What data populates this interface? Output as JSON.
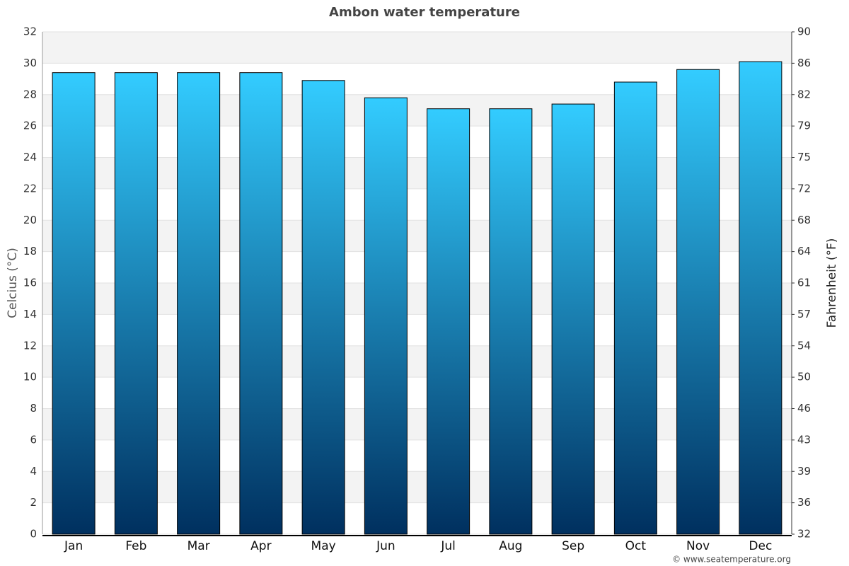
{
  "chart_data": {
    "type": "bar",
    "title": "Ambon water temperature",
    "categories": [
      "Jan",
      "Feb",
      "Mar",
      "Apr",
      "May",
      "Jun",
      "Jul",
      "Aug",
      "Sep",
      "Oct",
      "Nov",
      "Dec"
    ],
    "values": [
      29.4,
      29.4,
      29.4,
      29.4,
      28.9,
      27.8,
      27.1,
      27.1,
      27.4,
      28.8,
      29.6,
      30.1
    ],
    "color": [
      "#33ccff",
      "#00305f"
    ],
    "ylabel": "Celcius (°C)",
    "y2label": "Fahrenheit (°F)",
    "ylim": [
      0,
      32
    ],
    "yticks": [
      0,
      2,
      4,
      6,
      8,
      10,
      12,
      14,
      16,
      18,
      20,
      22,
      24,
      26,
      28,
      30,
      32
    ],
    "y2lim": [
      32,
      89.6
    ],
    "y2ticks": [
      32,
      {
        "value": 35.6,
        "label": "36"
      },
      {
        "value": 39.2,
        "label": "39"
      },
      {
        "value": 42.8,
        "label": "43"
      },
      {
        "value": 46.4,
        "label": "46"
      },
      50,
      {
        "value": 53.6,
        "label": "54"
      },
      {
        "value": 57.2,
        "label": "57"
      },
      {
        "value": 60.8,
        "label": "61"
      },
      {
        "value": 64.4,
        "label": "64"
      },
      68,
      {
        "value": 71.6,
        "label": "72"
      },
      {
        "value": 75.2,
        "label": "75"
      },
      {
        "value": 78.8,
        "label": "79"
      },
      {
        "value": 82.4,
        "label": "82"
      },
      86,
      {
        "value": 89.6,
        "label": "90"
      }
    ],
    "grid": true,
    "credit": "© www.seatemperature.org"
  }
}
